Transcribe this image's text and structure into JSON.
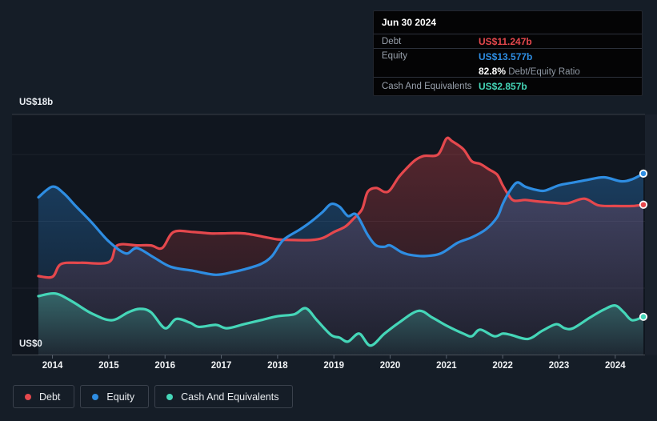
{
  "tooltip": {
    "date": "Jun 30 2024",
    "debt_label": "Debt",
    "debt_value": "US$11.247b",
    "equity_label": "Equity",
    "equity_value": "US$13.577b",
    "ratio_value": "82.8%",
    "ratio_label": "Debt/Equity Ratio",
    "cash_label": "Cash And Equivalents",
    "cash_value": "US$2.857b"
  },
  "legend": {
    "items": [
      {
        "label": "Debt",
        "color": "#e5484d"
      },
      {
        "label": "Equity",
        "color": "#2e8de2"
      },
      {
        "label": "Cash And Equivalents",
        "color": "#45d6b8"
      }
    ]
  },
  "chart_data": {
    "type": "area",
    "ylabel_top": "US$18b",
    "ylabel_bottom": "US$0",
    "ylim": [
      0,
      18
    ],
    "x_range": [
      2013.75,
      2024.5
    ],
    "x_ticks": [
      "2014",
      "2015",
      "2016",
      "2017",
      "2018",
      "2019",
      "2020",
      "2021",
      "2022",
      "2023",
      "2024"
    ],
    "gridline_values": [
      5,
      10,
      15
    ],
    "legend_position": "bottom",
    "grid": true,
    "series": [
      {
        "name": "Debt",
        "color": "#e5484d",
        "end_dot": true,
        "points": [
          [
            2013.75,
            5.9
          ],
          [
            2014.0,
            5.85
          ],
          [
            2014.15,
            6.8
          ],
          [
            2014.5,
            6.9
          ],
          [
            2015.0,
            6.95
          ],
          [
            2015.15,
            8.2
          ],
          [
            2015.5,
            8.2
          ],
          [
            2015.75,
            8.2
          ],
          [
            2015.95,
            8.0
          ],
          [
            2016.15,
            9.2
          ],
          [
            2016.5,
            9.2
          ],
          [
            2016.8,
            9.1
          ],
          [
            2017.0,
            9.1
          ],
          [
            2017.4,
            9.1
          ],
          [
            2017.8,
            8.8
          ],
          [
            2018.0,
            8.65
          ],
          [
            2018.3,
            8.6
          ],
          [
            2018.6,
            8.6
          ],
          [
            2018.8,
            8.75
          ],
          [
            2019.0,
            9.2
          ],
          [
            2019.2,
            9.6
          ],
          [
            2019.35,
            10.2
          ],
          [
            2019.5,
            10.9
          ],
          [
            2019.6,
            12.2
          ],
          [
            2019.75,
            12.5
          ],
          [
            2019.9,
            12.2
          ],
          [
            2020.0,
            12.35
          ],
          [
            2020.15,
            13.3
          ],
          [
            2020.3,
            14.0
          ],
          [
            2020.45,
            14.6
          ],
          [
            2020.6,
            14.9
          ],
          [
            2020.85,
            15.0
          ],
          [
            2021.0,
            16.2
          ],
          [
            2021.1,
            16.0
          ],
          [
            2021.3,
            15.4
          ],
          [
            2021.45,
            14.5
          ],
          [
            2021.6,
            14.3
          ],
          [
            2021.75,
            13.9
          ],
          [
            2021.9,
            13.5
          ],
          [
            2022.0,
            12.7
          ],
          [
            2022.1,
            12.0
          ],
          [
            2022.2,
            11.55
          ],
          [
            2022.4,
            11.6
          ],
          [
            2022.6,
            11.5
          ],
          [
            2022.9,
            11.4
          ],
          [
            2023.15,
            11.35
          ],
          [
            2023.45,
            11.7
          ],
          [
            2023.7,
            11.2
          ],
          [
            2024.0,
            11.15
          ],
          [
            2024.3,
            11.15
          ],
          [
            2024.5,
            11.247
          ]
        ]
      },
      {
        "name": "Equity",
        "color": "#2e8de2",
        "end_dot": true,
        "points": [
          [
            2013.75,
            11.8
          ],
          [
            2014.0,
            12.6
          ],
          [
            2014.2,
            12.1
          ],
          [
            2014.4,
            11.2
          ],
          [
            2014.7,
            9.9
          ],
          [
            2015.0,
            8.5
          ],
          [
            2015.3,
            7.6
          ],
          [
            2015.5,
            8.0
          ],
          [
            2015.8,
            7.3
          ],
          [
            2016.1,
            6.6
          ],
          [
            2016.5,
            6.3
          ],
          [
            2016.9,
            6.0
          ],
          [
            2017.2,
            6.2
          ],
          [
            2017.4,
            6.4
          ],
          [
            2017.7,
            6.8
          ],
          [
            2017.9,
            7.4
          ],
          [
            2018.1,
            8.6
          ],
          [
            2018.4,
            9.4
          ],
          [
            2018.6,
            10.0
          ],
          [
            2018.8,
            10.7
          ],
          [
            2018.95,
            11.3
          ],
          [
            2019.1,
            11.1
          ],
          [
            2019.25,
            10.4
          ],
          [
            2019.4,
            10.5
          ],
          [
            2019.6,
            9.0
          ],
          [
            2019.75,
            8.2
          ],
          [
            2019.9,
            8.1
          ],
          [
            2020.0,
            8.2
          ],
          [
            2020.2,
            7.7
          ],
          [
            2020.35,
            7.5
          ],
          [
            2020.6,
            7.4
          ],
          [
            2020.9,
            7.6
          ],
          [
            2021.2,
            8.4
          ],
          [
            2021.45,
            8.8
          ],
          [
            2021.7,
            9.4
          ],
          [
            2021.9,
            10.3
          ],
          [
            2022.0,
            11.3
          ],
          [
            2022.1,
            12.1
          ],
          [
            2022.25,
            12.9
          ],
          [
            2022.4,
            12.6
          ],
          [
            2022.6,
            12.35
          ],
          [
            2022.75,
            12.3
          ],
          [
            2023.0,
            12.7
          ],
          [
            2023.25,
            12.9
          ],
          [
            2023.5,
            13.1
          ],
          [
            2023.8,
            13.3
          ],
          [
            2024.1,
            13.0
          ],
          [
            2024.3,
            13.15
          ],
          [
            2024.5,
            13.577
          ]
        ]
      },
      {
        "name": "Cash And Equivalents",
        "color": "#45d6b8",
        "end_dot": true,
        "points": [
          [
            2013.75,
            4.4
          ],
          [
            2014.05,
            4.6
          ],
          [
            2014.35,
            4.0
          ],
          [
            2014.7,
            3.1
          ],
          [
            2015.05,
            2.6
          ],
          [
            2015.35,
            3.2
          ],
          [
            2015.55,
            3.45
          ],
          [
            2015.75,
            3.2
          ],
          [
            2016.0,
            2.0
          ],
          [
            2016.2,
            2.7
          ],
          [
            2016.45,
            2.4
          ],
          [
            2016.6,
            2.1
          ],
          [
            2016.9,
            2.25
          ],
          [
            2017.1,
            2.0
          ],
          [
            2017.4,
            2.3
          ],
          [
            2017.7,
            2.6
          ],
          [
            2018.0,
            2.9
          ],
          [
            2018.3,
            3.05
          ],
          [
            2018.5,
            3.5
          ],
          [
            2018.7,
            2.6
          ],
          [
            2018.95,
            1.5
          ],
          [
            2019.1,
            1.3
          ],
          [
            2019.25,
            1.0
          ],
          [
            2019.45,
            1.6
          ],
          [
            2019.65,
            0.7
          ],
          [
            2019.9,
            1.6
          ],
          [
            2020.15,
            2.4
          ],
          [
            2020.5,
            3.3
          ],
          [
            2020.75,
            2.8
          ],
          [
            2021.0,
            2.2
          ],
          [
            2021.3,
            1.6
          ],
          [
            2021.45,
            1.4
          ],
          [
            2021.6,
            1.9
          ],
          [
            2021.85,
            1.4
          ],
          [
            2022.0,
            1.6
          ],
          [
            2022.15,
            1.5
          ],
          [
            2022.45,
            1.2
          ],
          [
            2022.7,
            1.8
          ],
          [
            2022.95,
            2.3
          ],
          [
            2023.1,
            2.0
          ],
          [
            2023.25,
            2.0
          ],
          [
            2023.55,
            2.8
          ],
          [
            2023.8,
            3.4
          ],
          [
            2024.0,
            3.7
          ],
          [
            2024.15,
            3.2
          ],
          [
            2024.3,
            2.6
          ],
          [
            2024.5,
            2.857
          ]
        ]
      }
    ]
  }
}
